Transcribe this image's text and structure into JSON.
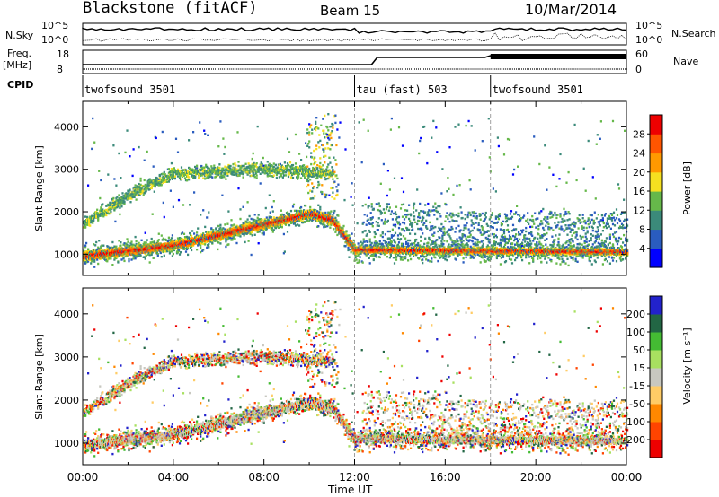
{
  "header": {
    "title": "Blackstone (fitACF)",
    "beam": "Beam 15",
    "date": "10/Mar/2014"
  },
  "top_panels": {
    "nsky_label": "N.Sky",
    "nsky_ticks": [
      "10^5",
      "10^0"
    ],
    "nsearch_label": "N.Search",
    "nsearch_ticks": [
      "10^5",
      "10^0"
    ],
    "freq_label": "Freq.",
    "freq_unit": "[MHz]",
    "freq_ticks": [
      "18",
      "8"
    ],
    "nave_label": "Nave",
    "nave_ticks": [
      "60",
      "0"
    ],
    "cpid_label": "CPID",
    "cpid_segments": [
      {
        "label": "twofsound 3501",
        "start_h": 0,
        "end_h": 12
      },
      {
        "label": "tau (fast) 503",
        "start_h": 12,
        "end_h": 18
      },
      {
        "label": "twofsound 3501",
        "start_h": 18,
        "end_h": 24
      }
    ]
  },
  "x_axis": {
    "label": "Time UT",
    "ticks": [
      "00:00",
      "04:00",
      "08:00",
      "12:00",
      "16:00",
      "20:00",
      "00:00"
    ]
  },
  "chart_data": [
    {
      "type": "heatmap",
      "name": "power",
      "ylabel": "Slant Range [km]",
      "yticks": [
        1000,
        2000,
        3000,
        4000
      ],
      "ylim": [
        500,
        4600
      ],
      "xlim_hours": [
        0,
        24
      ],
      "colorbar": {
        "label": "Power [dB]",
        "ticks": [
          4,
          8,
          12,
          16,
          20,
          24,
          28
        ],
        "range": [
          0,
          32
        ],
        "colors": [
          "#0000ff",
          "#2a5cbf",
          "#3b8a7a",
          "#66b84a",
          "#f5e020",
          "#ff9900",
          "#ff5500",
          "#ee0000"
        ]
      },
      "features": [
        {
          "desc": "main echo band",
          "points_h_km": [
            [
              0,
              950
            ],
            [
              4,
              1200
            ],
            [
              8,
              1700
            ],
            [
              10,
              1950
            ],
            [
              11,
              1800
            ],
            [
              12,
              1100
            ],
            [
              24,
              1050
            ]
          ]
        },
        {
          "desc": "upper echo band",
          "points_h_km": [
            [
              0,
              1700
            ],
            [
              2,
              2400
            ],
            [
              4,
              2900
            ],
            [
              8,
              3000
            ],
            [
              11,
              2900
            ]
          ]
        }
      ]
    },
    {
      "type": "heatmap",
      "name": "velocity",
      "ylabel": "Slant Range [km]",
      "yticks": [
        1000,
        2000,
        3000,
        4000
      ],
      "ylim": [
        500,
        4600
      ],
      "xlim_hours": [
        0,
        24
      ],
      "colorbar": {
        "label": "Velocity [m s⁻¹]",
        "ticks": [
          200,
          100,
          50,
          15,
          -15,
          -50,
          -100,
          -200
        ],
        "colors": [
          "#2222cc",
          "#226644",
          "#44bb33",
          "#a8e060",
          "#c8c8c0",
          "#ffcc66",
          "#ff8800",
          "#ff4400",
          "#ee0000"
        ]
      }
    }
  ]
}
